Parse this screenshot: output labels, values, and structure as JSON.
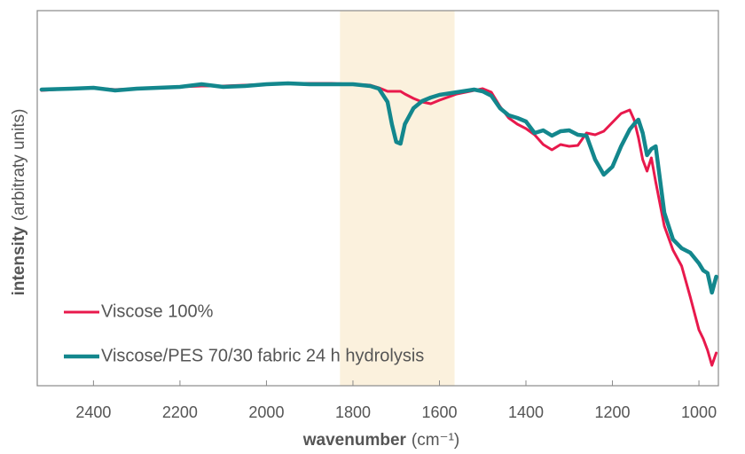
{
  "chart_data": {
    "type": "line",
    "xlabel": "wavenumber",
    "xlabel_unit": "(cm⁻¹)",
    "ylabel": "intensity",
    "ylabel_unit": "(arbitraty units)",
    "xlim": [
      2530,
      955
    ],
    "xticks": [
      2400,
      2200,
      2000,
      1800,
      1600,
      1400,
      1200,
      1000
    ],
    "ylim": [
      0,
      423
    ],
    "shaded_range": [
      1830,
      1565
    ],
    "shaded_color": "#fbf1dd",
    "legend_position": "lower left",
    "x": [
      2520,
      2450,
      2400,
      2350,
      2300,
      2250,
      2200,
      2150,
      2100,
      2050,
      2000,
      1950,
      1900,
      1850,
      1800,
      1760,
      1740,
      1720,
      1710,
      1700,
      1690,
      1680,
      1660,
      1640,
      1620,
      1600,
      1560,
      1520,
      1500,
      1480,
      1460,
      1440,
      1420,
      1400,
      1380,
      1360,
      1340,
      1320,
      1300,
      1280,
      1260,
      1240,
      1220,
      1200,
      1180,
      1160,
      1150,
      1140,
      1130,
      1120,
      1110,
      1100,
      1080,
      1060,
      1040,
      1020,
      1000,
      990,
      980,
      970,
      960
    ],
    "series": [
      {
        "name": "Viscose 100%",
        "color": "#e8194c",
        "width": 3,
        "values": [
          333,
          335,
          336,
          334,
          335,
          336,
          337,
          338,
          338,
          339,
          340,
          341,
          341,
          341,
          340,
          339,
          336,
          332,
          332,
          332,
          332,
          329,
          324,
          320,
          318,
          322,
          329,
          333,
          335,
          331,
          315,
          302,
          295,
          290,
          283,
          272,
          266,
          272,
          270,
          271,
          285,
          283,
          287,
          297,
          307,
          311,
          300,
          280,
          255,
          242,
          257,
          230,
          180,
          153,
          135,
          100,
          63,
          53,
          40,
          23,
          37
        ]
      },
      {
        "name": "Viscose/PES 70/30 fabric 24 h hydrolysis",
        "color": "#13878d",
        "width": 4.5,
        "values": [
          334,
          335,
          336,
          333,
          335,
          336,
          337,
          340,
          337,
          338,
          340,
          341,
          340,
          340,
          340,
          338,
          335,
          320,
          295,
          275,
          273,
          295,
          313,
          321,
          325,
          328,
          331,
          334,
          332,
          327,
          313,
          305,
          302,
          298,
          285,
          288,
          282,
          287,
          288,
          283,
          282,
          255,
          238,
          247,
          270,
          289,
          295,
          300,
          285,
          260,
          267,
          270,
          195,
          165,
          155,
          150,
          138,
          130,
          127,
          105,
          123
        ]
      }
    ]
  }
}
